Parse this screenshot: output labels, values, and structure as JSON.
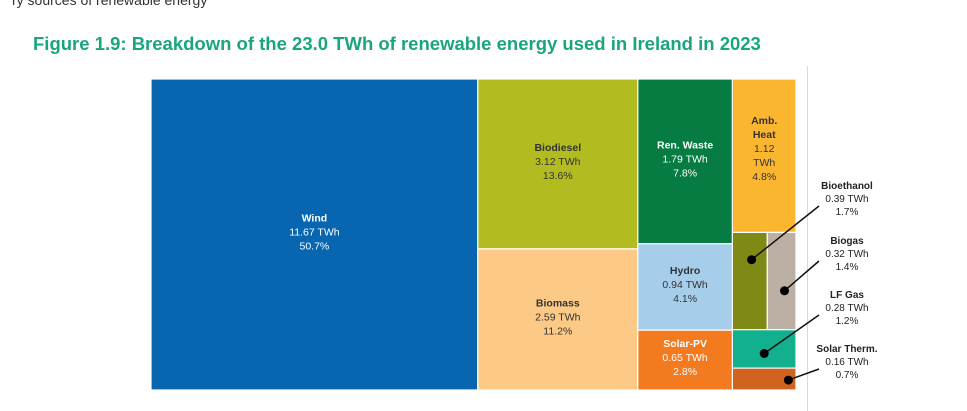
{
  "header": {
    "cut_text": "ry sources of renewable energy",
    "title": "Figure 1.9: Breakdown of the 23.0 TWh of renewable energy used in Ireland in 2023"
  },
  "chart_data": {
    "type": "treemap",
    "title": "Figure 1.9: Breakdown of the 23.0 TWh of renewable energy used in Ireland in 2023",
    "total": "23.0 TWh",
    "unit": "TWh",
    "items": [
      {
        "name": "Wind",
        "value": 11.67,
        "value_label": "11.67 TWh",
        "share": "50.7%",
        "color": "#0865b0",
        "text_color": "#ffffff"
      },
      {
        "name": "Biodiesel",
        "value": 3.12,
        "value_label": "3.12 TWh",
        "share": "13.6%",
        "color": "#b2bb1f",
        "text_color": "#333333"
      },
      {
        "name": "Biomass",
        "value": 2.59,
        "value_label": "2.59 TWh",
        "share": "11.2%",
        "color": "#fcc986",
        "text_color": "#333333"
      },
      {
        "name": "Ren. Waste",
        "value": 1.79,
        "value_label": "1.79 TWh",
        "share": "7.8%",
        "color": "#067c42",
        "text_color": "#ffffff"
      },
      {
        "name": "Amb. Heat",
        "value": 1.12,
        "value_label": "1.12 TWh",
        "share": "4.8%",
        "color": "#fbb630",
        "text_color": "#333333"
      },
      {
        "name": "Hydro",
        "value": 0.94,
        "value_label": "0.94 TWh",
        "share": "4.1%",
        "color": "#a6cde9",
        "text_color": "#333333"
      },
      {
        "name": "Solar-PV",
        "value": 0.65,
        "value_label": "0.65 TWh",
        "share": "2.8%",
        "color": "#f47a20",
        "text_color": "#ffffff"
      },
      {
        "name": "Bioethanol",
        "value": 0.39,
        "value_label": "0.39 TWh",
        "share": "1.7%",
        "color": "#7f8a16",
        "text_color": "#222222"
      },
      {
        "name": "Biogas",
        "value": 0.32,
        "value_label": "0.32 TWh",
        "share": "1.4%",
        "color": "#bcb0a4",
        "text_color": "#222222"
      },
      {
        "name": "LF Gas",
        "value": 0.28,
        "value_label": "0.28 TWh",
        "share": "1.2%",
        "color": "#12b08e",
        "text_color": "#222222"
      },
      {
        "name": "Solar Therm.",
        "value": 0.16,
        "value_label": "0.16 TWh",
        "share": "0.7%",
        "color": "#d0641f",
        "text_color": "#222222"
      }
    ]
  }
}
